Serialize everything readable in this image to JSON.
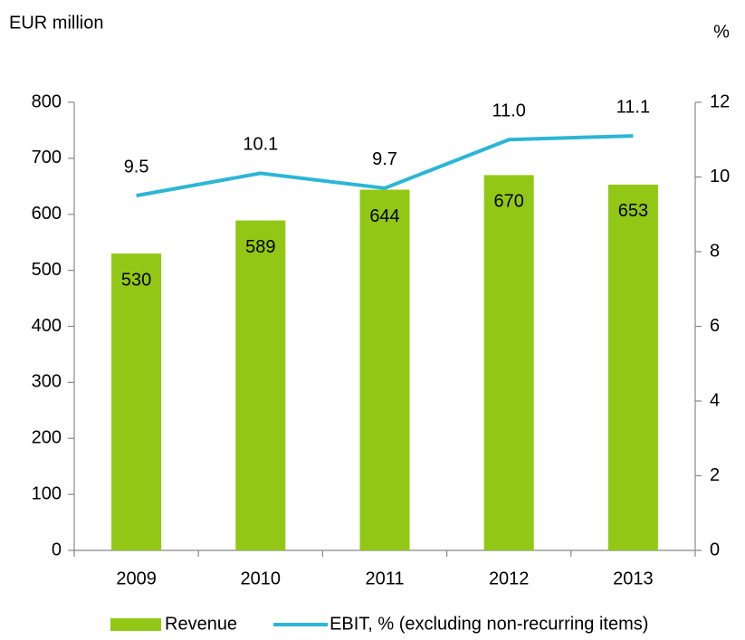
{
  "chart_data": {
    "type": "bar",
    "y_label": "EUR million",
    "y2_label": "%",
    "categories": [
      "2009",
      "2010",
      "2011",
      "2012",
      "2013"
    ],
    "series": [
      {
        "name": "Revenue",
        "type": "bar",
        "color": "#92c815",
        "values": [
          530,
          589,
          644,
          670,
          653
        ]
      },
      {
        "name": "EBIT, % (excluding non-recurring items)",
        "type": "line",
        "axis": "y2",
        "color": "#2cb6d6",
        "values": [
          9.5,
          10.1,
          9.7,
          11.0,
          11.1
        ],
        "value_labels": [
          "9.5",
          "10.1",
          "9.7",
          "11.0",
          "11.1"
        ]
      }
    ],
    "ylim": [
      0,
      800
    ],
    "yticks": [
      0,
      100,
      200,
      300,
      400,
      500,
      600,
      700,
      800
    ],
    "y2lim": [
      0,
      12
    ],
    "y2ticks": [
      0,
      2,
      4,
      6,
      8,
      10,
      12
    ],
    "legend": "bottom"
  }
}
